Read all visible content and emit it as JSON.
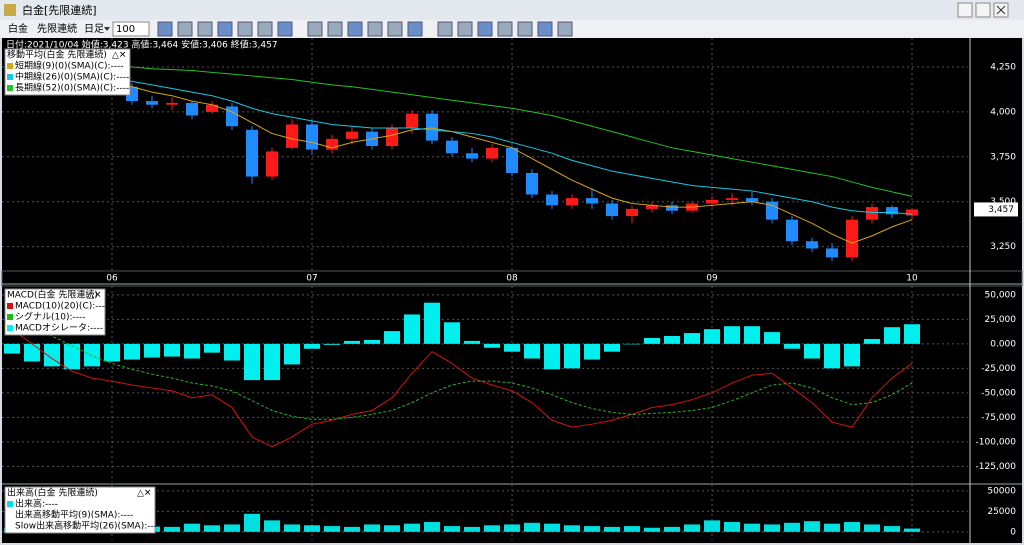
{
  "window": {
    "title": "白金[先限連続]"
  },
  "toolbar": {
    "symbol": "白金",
    "contract": "先限連続",
    "period": "日足",
    "count": "100"
  },
  "chart_data": [
    {
      "type": "candlestick",
      "header": "日付:2021/10/04 始値:3,423 高値:3,464 安値:3,406 終値:3,457",
      "legend_title": "移動平均(白金 先限連続)",
      "xlim": [
        -0.5,
        47.8
      ],
      "xticks": [
        {
          "value": 5,
          "label": "06"
        },
        {
          "value": 15,
          "label": "07"
        },
        {
          "value": 25,
          "label": "08"
        },
        {
          "value": 35,
          "label": "09"
        },
        {
          "value": 45,
          "label": "10"
        }
      ],
      "ylim": [
        3120,
        4400
      ],
      "yticks": [
        {
          "value": 3250,
          "label": "3,250"
        },
        {
          "value": 3500,
          "label": "3,500"
        },
        {
          "value": 3750,
          "label": "3,750"
        },
        {
          "value": 4000,
          "label": "4,000"
        },
        {
          "value": 4250,
          "label": "4,250"
        }
      ],
      "up_color": "#ff1a1a",
      "down_color": "#1f8bff",
      "open": [
        4200,
        4170,
        4190,
        4180,
        4150,
        4160,
        4140,
        4060,
        4040,
        4050,
        4000,
        4030,
        3900,
        3640,
        3800,
        3930,
        3790,
        3850,
        3890,
        3810,
        3910,
        3990,
        3840,
        3770,
        3740,
        3800,
        3660,
        3540,
        3480,
        3520,
        3490,
        3420,
        3460,
        3480,
        3450,
        3490,
        3510,
        3520,
        3500,
        3400,
        3280,
        3240,
        3190,
        3400,
        3470,
        3423
      ],
      "high": [
        4230,
        4200,
        4220,
        4200,
        4180,
        4190,
        4160,
        4090,
        4080,
        4060,
        4060,
        4050,
        3920,
        3800,
        3960,
        3950,
        3870,
        3920,
        3910,
        3930,
        4010,
        4010,
        3860,
        3800,
        3820,
        3810,
        3680,
        3560,
        3540,
        3570,
        3510,
        3480,
        3500,
        3500,
        3500,
        3530,
        3550,
        3560,
        3520,
        3420,
        3300,
        3270,
        3420,
        3490,
        3480,
        3464
      ],
      "low": [
        4160,
        4140,
        4170,
        4130,
        4120,
        4130,
        4040,
        4020,
        4010,
        3960,
        3990,
        3900,
        3600,
        3620,
        3790,
        3760,
        3770,
        3820,
        3790,
        3790,
        3880,
        3820,
        3750,
        3720,
        3720,
        3640,
        3520,
        3460,
        3460,
        3460,
        3400,
        3380,
        3440,
        3430,
        3440,
        3470,
        3480,
        3480,
        3380,
        3260,
        3220,
        3170,
        3170,
        3380,
        3410,
        3406
      ],
      "close": [
        4170,
        4190,
        4180,
        4150,
        4160,
        4140,
        4060,
        4040,
        4050,
        3980,
        4040,
        3920,
        3640,
        3780,
        3930,
        3790,
        3850,
        3890,
        3810,
        3910,
        3990,
        3840,
        3770,
        3740,
        3800,
        3660,
        3540,
        3480,
        3520,
        3490,
        3420,
        3460,
        3480,
        3450,
        3490,
        3510,
        3520,
        3500,
        3400,
        3280,
        3240,
        3190,
        3400,
        3470,
        3430,
        3457
      ],
      "last_price": {
        "value": 3457,
        "label": "3,457"
      },
      "series": [
        {
          "name": "短期線(9)(0)(SMA)(C):----",
          "color": "#d9a514",
          "values": [
            4200,
            4195,
            4190,
            4185,
            4175,
            4165,
            4140,
            4110,
            4090,
            4060,
            4040,
            4000,
            3940,
            3880,
            3850,
            3830,
            3800,
            3830,
            3850,
            3870,
            3900,
            3910,
            3890,
            3860,
            3830,
            3800,
            3740,
            3680,
            3620,
            3570,
            3520,
            3490,
            3480,
            3470,
            3470,
            3480,
            3490,
            3500,
            3480,
            3430,
            3380,
            3320,
            3270,
            3310,
            3360,
            3400
          ]
        },
        {
          "name": "中期線(26)(0)(SMA)(C):----",
          "color": "#14c8e6",
          "values": [
            4240,
            4230,
            4220,
            4210,
            4200,
            4190,
            4170,
            4150,
            4130,
            4110,
            4090,
            4060,
            4020,
            3990,
            3970,
            3950,
            3930,
            3920,
            3910,
            3910,
            3910,
            3900,
            3890,
            3880,
            3860,
            3830,
            3800,
            3770,
            3730,
            3700,
            3670,
            3650,
            3630,
            3610,
            3590,
            3580,
            3570,
            3560,
            3540,
            3520,
            3500,
            3470,
            3450,
            3440,
            3440,
            3430
          ]
        },
        {
          "name": "長期線(52)(0)(SMA)(C):----",
          "color": "#22c322",
          "values": [
            4300,
            4290,
            4280,
            4275,
            4270,
            4260,
            4250,
            4240,
            4235,
            4230,
            4220,
            4210,
            4200,
            4190,
            4180,
            4165,
            4150,
            4140,
            4125,
            4110,
            4095,
            4080,
            4065,
            4050,
            4035,
            4020,
            4000,
            3980,
            3950,
            3920,
            3890,
            3860,
            3830,
            3800,
            3780,
            3760,
            3740,
            3720,
            3700,
            3680,
            3660,
            3640,
            3610,
            3580,
            3555,
            3530
          ]
        }
      ]
    },
    {
      "type": "macd",
      "legend_title": "MACD(白金 先限連続)",
      "ylim": [
        -141000,
        57000
      ],
      "yticks": [
        {
          "value": 50000,
          "label": "50,000"
        },
        {
          "value": 25000,
          "label": "25,000"
        },
        {
          "value": 0,
          "label": "0.000"
        },
        {
          "value": -25000,
          "label": "-25,000"
        },
        {
          "value": -50000,
          "label": "-50,000"
        },
        {
          "value": -75000,
          "label": "-75,000"
        },
        {
          "value": -100000,
          "label": "-100,000"
        },
        {
          "value": -125000,
          "label": "-125,000"
        }
      ],
      "series": [
        {
          "name": "MACD(10)(20)(C):----",
          "kind": "line",
          "color": "#d41010",
          "values": [
            15000,
            0,
            -15000,
            -28000,
            -35000,
            -38000,
            -42000,
            -45000,
            -48000,
            -55000,
            -52000,
            -65000,
            -95000,
            -105000,
            -95000,
            -82000,
            -78000,
            -72000,
            -68000,
            -55000,
            -30000,
            -8000,
            -20000,
            -35000,
            -42000,
            -48000,
            -60000,
            -78000,
            -85000,
            -82000,
            -78000,
            -72000,
            -65000,
            -62000,
            -57000,
            -50000,
            -40000,
            -32000,
            -30000,
            -45000,
            -60000,
            -80000,
            -85000,
            -55000,
            -35000,
            -20000
          ]
        },
        {
          "name": "シグナル(10):----",
          "kind": "dashed",
          "color": "#22b822",
          "values": [
            25000,
            18000,
            8000,
            -2000,
            -12000,
            -20000,
            -26000,
            -31000,
            -35000,
            -40000,
            -43000,
            -48000,
            -58000,
            -68000,
            -74000,
            -77000,
            -77000,
            -75000,
            -72000,
            -68000,
            -60000,
            -50000,
            -42000,
            -38000,
            -38000,
            -40000,
            -45000,
            -52000,
            -60000,
            -66000,
            -70000,
            -72000,
            -71000,
            -70000,
            -68000,
            -65000,
            -58000,
            -50000,
            -42000,
            -40000,
            -45000,
            -55000,
            -62000,
            -60000,
            -52000,
            -40000
          ]
        },
        {
          "name": "MACDオシレータ:----",
          "kind": "bar",
          "color": "#00f0f0",
          "values": [
            -10000,
            -18000,
            -23000,
            -26000,
            -23000,
            -18000,
            -16000,
            -14000,
            -13000,
            -15000,
            -9000,
            -17000,
            -37000,
            -37000,
            -21000,
            -5000,
            -1000,
            3000,
            4000,
            13000,
            30000,
            42000,
            22000,
            3000,
            -4000,
            -8000,
            -15000,
            -26000,
            -25000,
            -16000,
            -8000,
            0,
            6000,
            8000,
            11000,
            15000,
            18000,
            18000,
            12000,
            -5000,
            -15000,
            -25000,
            -23000,
            5000,
            17000,
            20000
          ]
        }
      ]
    },
    {
      "type": "volume",
      "legend_title": "出来高(白金 先限連続)",
      "ylim": [
        -10000,
        56000
      ],
      "yticks": [
        0,
        25000,
        50000
      ],
      "legend_extra": [
        "出来高移動平均(9)(SMA):----",
        "Slow出来高移動平均(26)(SMA):----"
      ],
      "series": [
        {
          "name": "出来高:----",
          "kind": "bar",
          "color": "#00e0e0",
          "values": [
            5000,
            7000,
            6000,
            4000,
            8000,
            6000,
            9000,
            7000,
            6000,
            10000,
            8000,
            9000,
            22000,
            14000,
            9000,
            8000,
            7000,
            6000,
            9000,
            8000,
            10000,
            12000,
            7000,
            6000,
            8000,
            9000,
            11000,
            10000,
            8000,
            7000,
            6000,
            7000,
            5000,
            6000,
            9000,
            14000,
            12000,
            10000,
            9000,
            11000,
            13000,
            10000,
            12000,
            9000,
            7000,
            4000
          ]
        }
      ]
    }
  ]
}
